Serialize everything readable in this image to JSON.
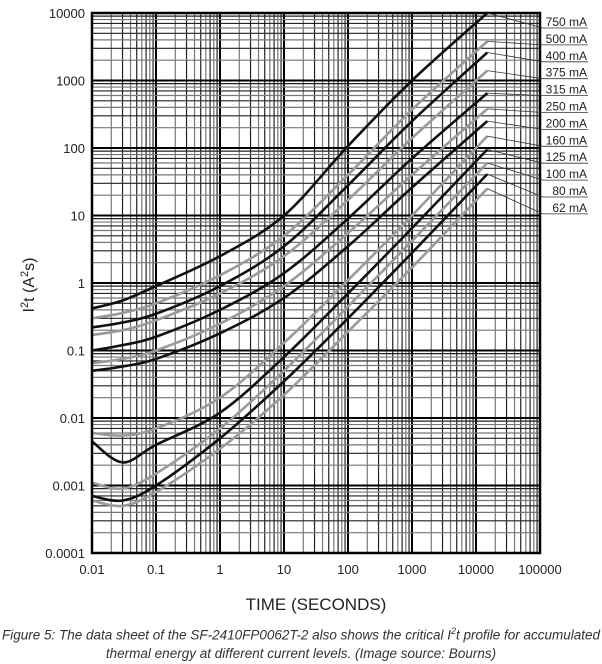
{
  "chart_data": {
    "type": "line",
    "xscale": "log",
    "yscale": "log",
    "xlabel": "TIME (SECONDS)",
    "ylabel": {
      "base": "I",
      "sup1": "2",
      "mid": "t (A",
      "sup2": "2",
      "end": "s)"
    },
    "xlim": [
      0.01,
      100000
    ],
    "ylim": [
      0.0001,
      10000
    ],
    "grid": true,
    "legend_placement": "right",
    "x_ticks": [
      "0.01",
      "0.1",
      "1",
      "10",
      "100",
      "1000",
      "10000",
      "100000"
    ],
    "y_ticks": [
      "10000",
      "1000",
      "100",
      "10",
      "1",
      "0.1",
      "0.01",
      "0.001",
      "0.0001"
    ],
    "x": [
      0.01,
      0.03,
      0.1,
      1,
      10,
      100,
      1000,
      15000
    ],
    "series": [
      {
        "name": "750 mA",
        "color": "#111111",
        "values": [
          0.42,
          0.55,
          0.9,
          2.5,
          10,
          107,
          1000,
          10000
        ]
      },
      {
        "name": "500 mA",
        "color": "#9a9a9a",
        "values": [
          0.3,
          0.36,
          0.5,
          1.3,
          5,
          40,
          370,
          3800
        ]
      },
      {
        "name": "400 mA",
        "color": "#111111",
        "values": [
          0.22,
          0.26,
          0.35,
          0.9,
          3.5,
          28,
          250,
          2600
        ]
      },
      {
        "name": "375 mA",
        "color": "#9a9a9a",
        "values": [
          0.17,
          0.2,
          0.28,
          0.7,
          2.5,
          17,
          140,
          1400
        ]
      },
      {
        "name": "315 mA",
        "color": "#111111",
        "values": [
          0.1,
          0.12,
          0.16,
          0.4,
          1.4,
          9,
          70,
          650
        ]
      },
      {
        "name": "250 mA",
        "color": "#9a9a9a",
        "values": [
          0.065,
          0.075,
          0.1,
          0.25,
          0.9,
          5.5,
          40,
          380
        ]
      },
      {
        "name": "200 mA",
        "color": "#111111",
        "values": [
          0.05,
          0.058,
          0.075,
          0.18,
          0.6,
          3.5,
          26,
          250
        ]
      },
      {
        "name": "160 mA",
        "color": "#9a9a9a",
        "values": [
          0.006,
          0.0055,
          0.007,
          0.02,
          0.13,
          1.1,
          10,
          150
        ]
      },
      {
        "name": "125 mA",
        "color": "#111111",
        "values": [
          0.0045,
          0.0022,
          0.004,
          0.012,
          0.08,
          0.7,
          6.5,
          95
        ]
      },
      {
        "name": "100 mA",
        "color": "#9a9a9a",
        "values": [
          0.0011,
          0.0009,
          0.0015,
          0.007,
          0.05,
          0.45,
          4.2,
          60
        ]
      },
      {
        "name": "80 mA",
        "color": "#111111",
        "values": [
          0.0007,
          0.0006,
          0.001,
          0.005,
          0.035,
          0.3,
          2.8,
          41
        ]
      },
      {
        "name": "62 mA",
        "color": "#9a9a9a",
        "values": [
          0.0006,
          0.0005,
          0.0008,
          0.0035,
          0.022,
          0.19,
          1.7,
          25
        ]
      }
    ]
  },
  "caption": {
    "part1": "Figure 5: The data sheet of the SF-2410FP0062T-2 also shows the critical I",
    "sup": "2",
    "part2": "t profile for accumulated thermal energy at different current levels. (Image source: Bourns)"
  }
}
